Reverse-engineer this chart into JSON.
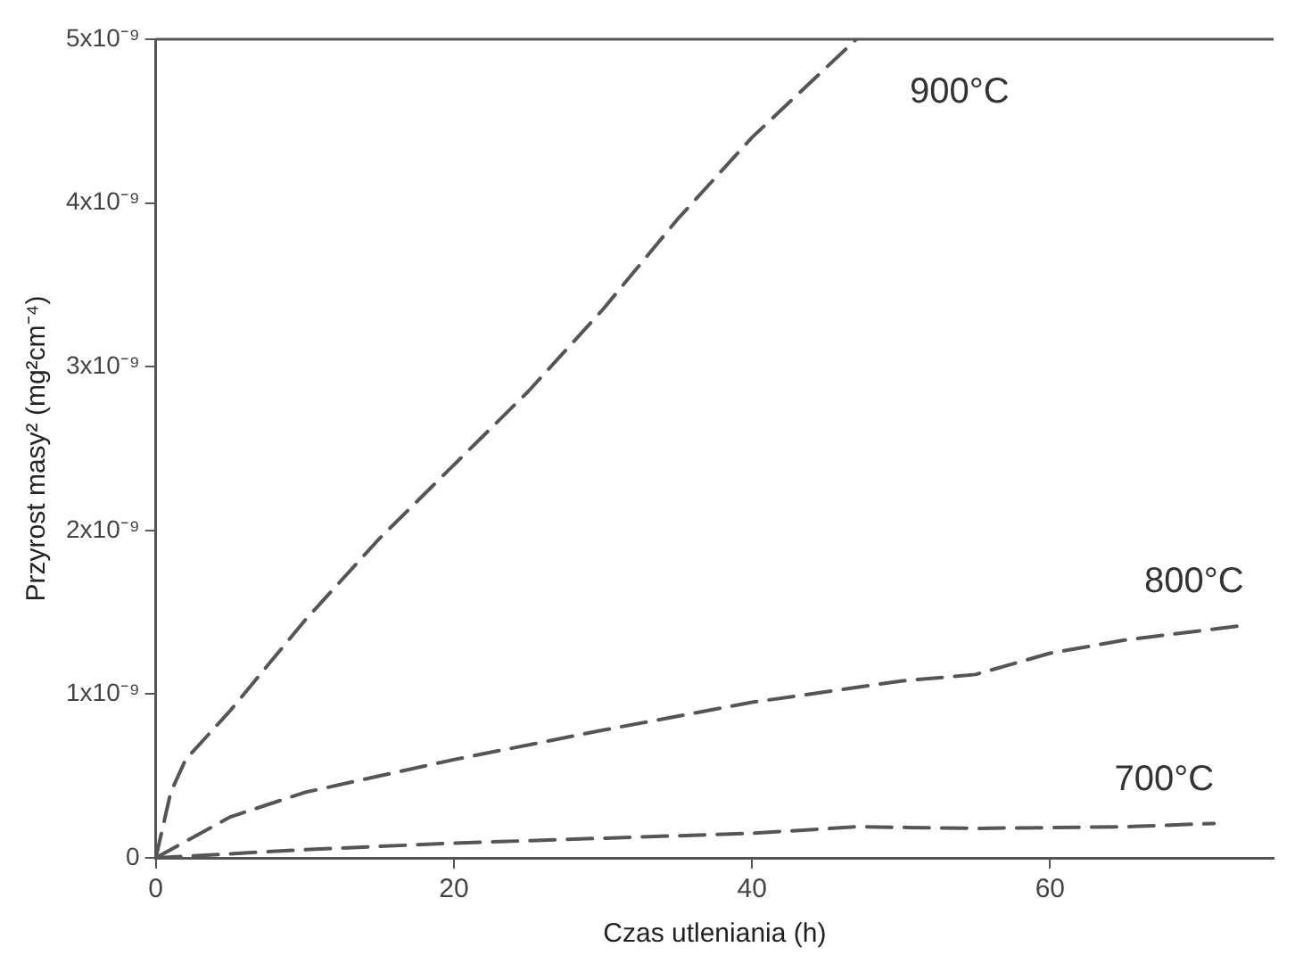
{
  "chart_data": {
    "type": "line",
    "xlabel": "Czas utleniania (h)",
    "ylabel": "Przyrost masy² (mg²cm⁻⁴)",
    "xlim": [
      0,
      75
    ],
    "xticks": [
      0,
      20,
      40,
      60
    ],
    "ylim": [
      0,
      5e-09
    ],
    "yticks": [
      0,
      {
        "value": 1e-09,
        "label": "1x10⁻⁹"
      },
      {
        "value": 2e-09,
        "label": "2x10⁻⁹"
      },
      {
        "value": 3e-09,
        "label": "3x10⁻⁹"
      },
      {
        "value": 4e-09,
        "label": "4x10⁻⁹"
      },
      {
        "value": 5e-09,
        "label": "5x10⁻⁹"
      }
    ],
    "grid": false,
    "legend": false,
    "marker": "none",
    "line_style": "dashed",
    "series": [
      {
        "name": "900°C",
        "color": "#555555",
        "x": [
          0,
          1,
          2,
          5,
          10,
          15,
          20,
          25,
          30,
          35,
          40,
          47
        ],
        "values": [
          0,
          4e-10,
          6e-10,
          9e-10,
          1.45e-09,
          1.95e-09,
          2.4e-09,
          2.85e-09,
          3.35e-09,
          3.9e-09,
          4.4e-09,
          5e-09
        ]
      },
      {
        "name": "800°C",
        "color": "#555555",
        "x": [
          0,
          5,
          10,
          20,
          30,
          40,
          50,
          55,
          60,
          65,
          73
        ],
        "values": [
          0,
          2.5e-10,
          4e-10,
          6e-10,
          7.8e-10,
          9.5e-10,
          1.08e-09,
          1.12e-09,
          1.25e-09,
          1.33e-09,
          1.42e-09
        ]
      },
      {
        "name": "700°C",
        "color": "#555555",
        "x": [
          0,
          10,
          20,
          30,
          40,
          47,
          55,
          65,
          71
        ],
        "values": [
          0,
          5e-11,
          9e-11,
          1.2e-10,
          1.5e-10,
          1.9e-10,
          1.8e-10,
          1.9e-10,
          2.1e-10
        ]
      }
    ]
  }
}
